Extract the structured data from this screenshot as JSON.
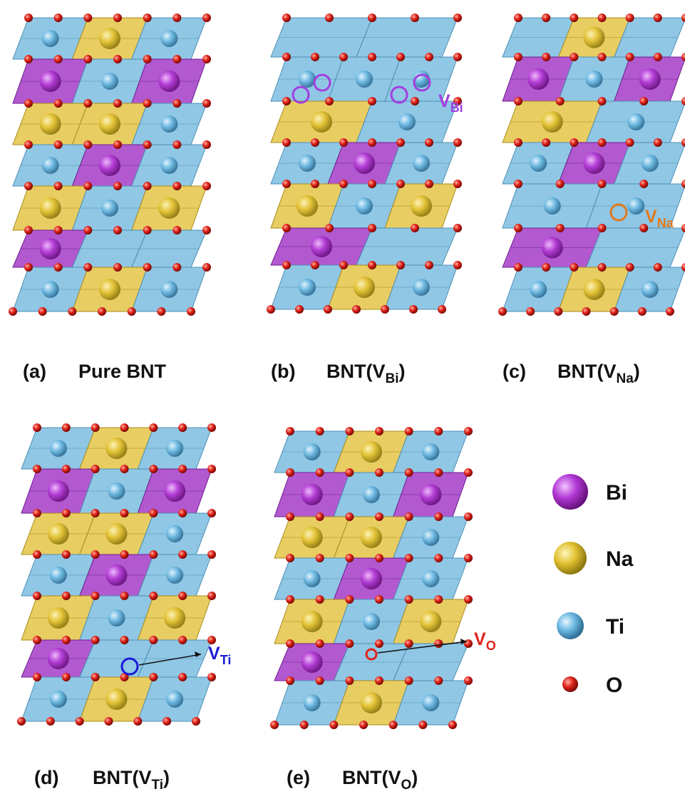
{
  "panels": [
    {
      "tag": "(a)",
      "label": {
        "main": "Pure BNT"
      }
    },
    {
      "tag": "(b)",
      "label": {
        "main": "BNT(V",
        "sub": "Bi",
        "end": ")"
      },
      "vacancy": {
        "main": "V",
        "sub": "Bi"
      }
    },
    {
      "tag": "(c)",
      "label": {
        "main": "BNT(V",
        "sub": "Na",
        "end": ")"
      },
      "vacancy": {
        "main": "V",
        "sub": "Na"
      }
    },
    {
      "tag": "(d)",
      "label": {
        "main": "BNT(V",
        "sub": "Ti",
        "end": ")"
      },
      "vacancy": {
        "main": "V",
        "sub": "Ti"
      }
    },
    {
      "tag": "(e)",
      "label": {
        "main": "BNT(V",
        "sub": "O",
        "end": ")"
      },
      "vacancy": {
        "main": "V",
        "sub": "O"
      }
    }
  ],
  "legend": [
    "Bi",
    "Na",
    "Ti",
    "O"
  ]
}
